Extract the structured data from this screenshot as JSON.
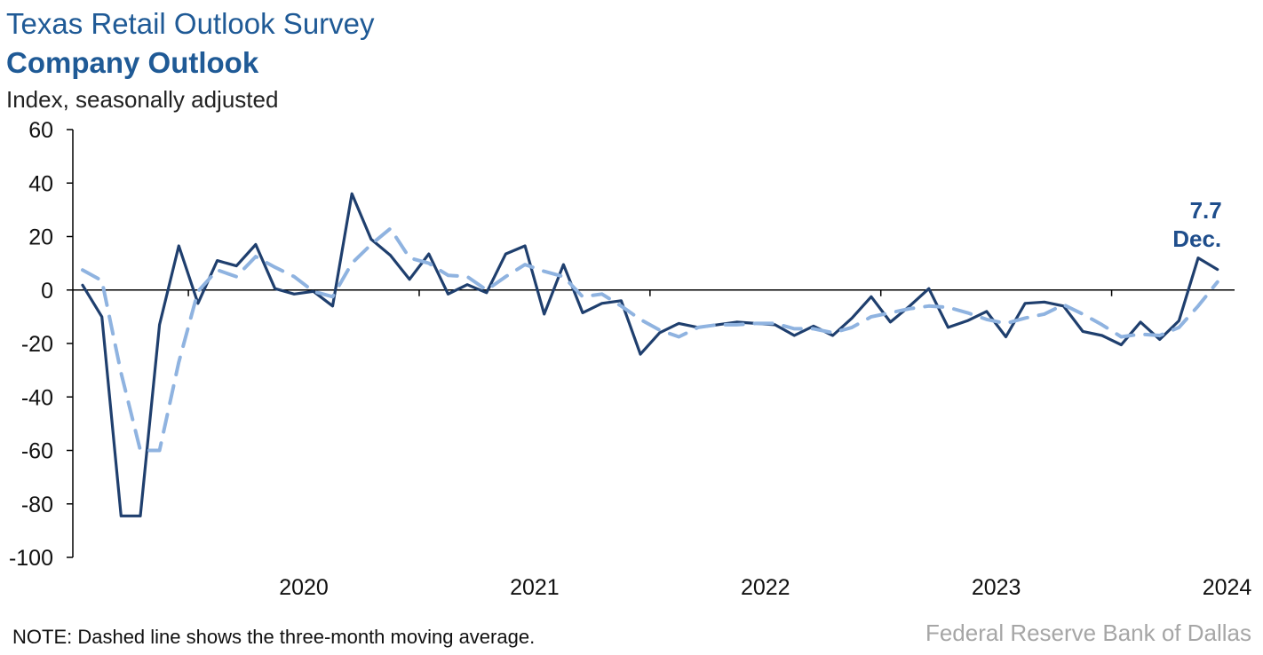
{
  "header": {
    "title": "Texas Retail Outlook Survey",
    "subtitle": "Company Outlook",
    "ylabel": "Index, seasonally adjusted"
  },
  "footer": {
    "note": "NOTE: Dashed line shows the three-month moving average.",
    "source": "Federal Reserve Bank of Dallas"
  },
  "chart_data": {
    "type": "line",
    "title": "Texas Retail Outlook Survey",
    "subtitle": "Company Outlook",
    "ylabel": "Index, seasonally adjusted",
    "xlabel": "",
    "ylim": [
      -100,
      60
    ],
    "yticks": [
      60,
      40,
      20,
      0,
      -20,
      -40,
      -60,
      -80,
      -100
    ],
    "year_labels": [
      "2020",
      "2021",
      "2022",
      "2023",
      "2024"
    ],
    "x_start": "2019-07",
    "x_end": "2024-12",
    "colors": {
      "index": "#1f3f6e",
      "moving_average": "#8fb3e0",
      "axis": "#000000",
      "callout": "#1f4e8c"
    },
    "series": [
      {
        "name": "",
        "style": "solid",
        "values": [
          1.8,
          -10,
          -84.5,
          -84.5,
          -13,
          16.5,
          -5,
          11,
          9,
          17,
          0.5,
          -1.5,
          -0.5,
          -6,
          36,
          19,
          13,
          4,
          13.5,
          -1.5,
          2,
          -1,
          13.5,
          16.5,
          -9,
          9.5,
          -8.5,
          -5,
          -4,
          -24,
          -16,
          -12.5,
          -14,
          -13,
          -12,
          -12.5,
          -13,
          -17,
          -13.5,
          -17,
          -10.5,
          -2.5,
          -12,
          -6,
          0.5,
          -14,
          -11.5,
          -8,
          -17.5,
          -5,
          -4.5,
          -6,
          -15.5,
          -17,
          -20.5,
          -12,
          -18.5,
          -11.5,
          12,
          7.7
        ]
      },
      {
        "name": "",
        "style": "dashed",
        "values": [
          7.5,
          3.5,
          -31,
          -60,
          -60,
          -27,
          -0.5,
          7.5,
          5,
          12.5,
          8.5,
          5,
          -0.5,
          -2.5,
          10,
          17,
          23,
          12,
          10,
          5.5,
          5,
          0,
          5,
          9.5,
          7,
          5,
          -2.5,
          -1.5,
          -6,
          -11,
          -15,
          -17.5,
          -14,
          -13,
          -13,
          -12.5,
          -12.5,
          -14.5,
          -14.5,
          -16,
          -14,
          -10,
          -8.5,
          -7,
          -6,
          -6.5,
          -8.5,
          -11,
          -12.5,
          -10.5,
          -9,
          -5.5,
          -9,
          -13,
          -17.5,
          -16.5,
          -17,
          -14,
          -6,
          3
        ]
      }
    ],
    "annotations": [
      {
        "text_value": "7.7",
        "text_month": "Dec."
      }
    ]
  }
}
